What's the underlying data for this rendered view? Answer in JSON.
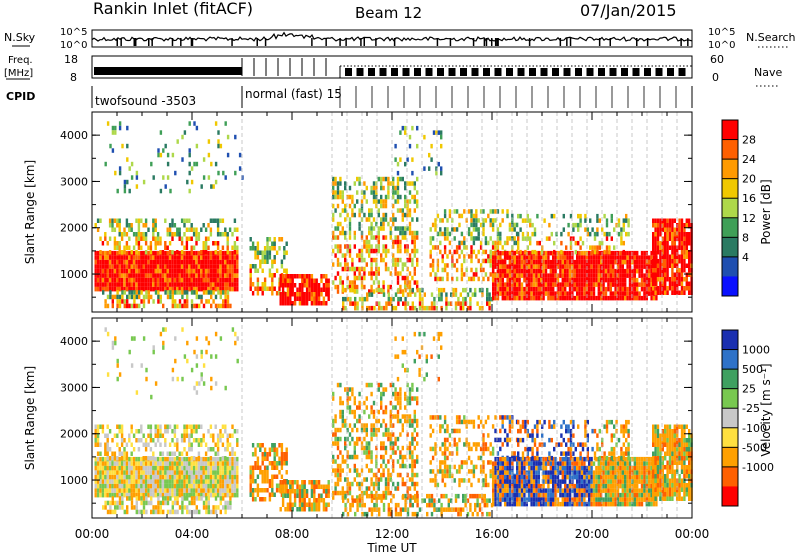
{
  "header": {
    "title": "Rankin Inlet (fitACF)",
    "beam": "Beam 12",
    "date": "07/Jan/2015"
  },
  "top_strips": {
    "nsky_label": "N.Sky",
    "nsearch_label": "N.Search",
    "noise_ticks": [
      "10^5",
      "10^0"
    ],
    "freq_label_1": "Freq.",
    "freq_label_2": "[MHz]",
    "freq_ticks": [
      "18",
      "8"
    ],
    "nave_label": "Nave",
    "nave_ticks": [
      "60",
      "0"
    ],
    "cpid_label": "CPID",
    "cpid_names": [
      "twofsound -3503",
      "normal (fast) 15"
    ]
  },
  "time_axis": {
    "label": "Time UT",
    "ticks": [
      "00:00",
      "04:00",
      "08:00",
      "12:00",
      "16:00",
      "20:00",
      "00:00"
    ]
  },
  "chart_data": [
    {
      "type": "heatmap",
      "quantity": "Power",
      "ylabel": "Slant Range [km]",
      "y_ticks": [
        1000,
        2000,
        3000,
        4000
      ],
      "ylim": [
        180,
        4500
      ],
      "x_hours": [
        0,
        24
      ],
      "colorbar": {
        "label": "Power [dB]",
        "ticks": [
          "28",
          "24",
          "20",
          "16",
          "12",
          "8",
          "4"
        ],
        "colors": [
          "#ff0000",
          "#ff6000",
          "#ff9a00",
          "#f0c800",
          "#aed84a",
          "#3f9f57",
          "#2a7a62",
          "#1f4fb0",
          "#0a10ff"
        ]
      }
    },
    {
      "type": "heatmap",
      "quantity": "Velocity",
      "ylabel": "Slant Range [km]",
      "y_ticks": [
        1000,
        2000,
        3000,
        4000
      ],
      "ylim": [
        180,
        4500
      ],
      "x_hours": [
        0,
        24
      ],
      "colorbar": {
        "label": "Velocity [m s⁻¹]",
        "ticks": [
          "1000",
          "500",
          "25",
          "-25",
          "-100",
          "-500",
          "-1000"
        ],
        "colors": [
          "#1a2fb0",
          "#2e72c8",
          "#3fa060",
          "#78c850",
          "#c8c8c8",
          "#ffe040",
          "#ffa000",
          "#ff6000",
          "#ff0000"
        ]
      }
    }
  ]
}
